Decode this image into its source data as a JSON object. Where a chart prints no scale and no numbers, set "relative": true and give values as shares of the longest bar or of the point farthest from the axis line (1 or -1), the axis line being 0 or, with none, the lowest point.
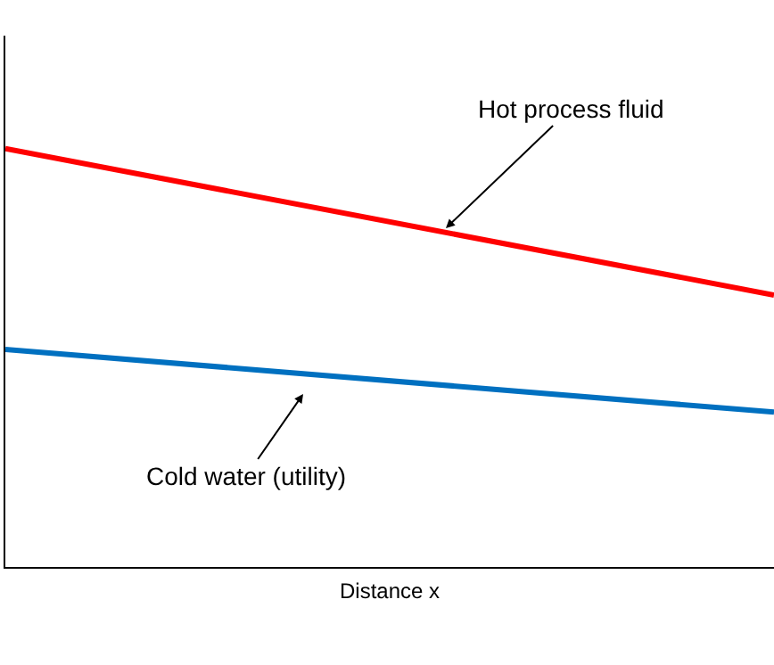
{
  "chart_data": {
    "type": "line",
    "relative": true,
    "xlabel": "Distance x",
    "categories": [
      null,
      null
    ],
    "series": [
      {
        "color": "#ff0000",
        "values": [
          1,
          0.65
        ]
      },
      {
        "color": "#0070c0",
        "values": [
          0.52,
          0.37
        ]
      }
    ],
    "annotations": [
      "Hot process fluid",
      "Cold water (utility)"
    ],
    "marker": "none",
    "line_style": "solid"
  }
}
